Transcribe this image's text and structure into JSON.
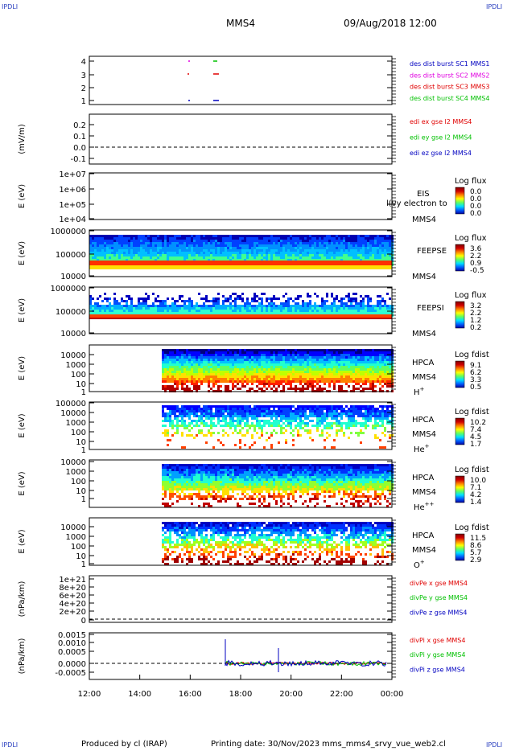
{
  "corners": {
    "tl": "IPDLI",
    "tr": "IPDLI",
    "bl": "IPDLI",
    "br": "IPDLI"
  },
  "header": {
    "spacecraft": "MMS4",
    "datetime": "09/Aug/2018 12:00"
  },
  "footer": {
    "produced": "Produced by cl (IRAP)",
    "printed": "Printing date: 30/Nov/2023",
    "file": "mms_mms4_srvy_vue_web2.cl"
  },
  "colors": {
    "red": "#e00000",
    "green": "#00c000",
    "blue": "#0000c0",
    "magenta": "#e000e0"
  },
  "chart_data": {
    "type": "heatmap",
    "x_ticks": [
      "12:00",
      "14:00",
      "16:00",
      "18:00",
      "20:00",
      "22:00",
      "00:00"
    ],
    "x_range": [
      "2018-08-09T12:00",
      "2018-08-10T00:00"
    ],
    "panels": [
      {
        "id": "burst",
        "yticks": [
          "4",
          "3",
          "2",
          "1"
        ],
        "ylabel": "",
        "legend": [
          {
            "text": "des dist burst SC1 MMS1",
            "color": "#0000c0"
          },
          {
            "text": "des dist burst SC2 MMS2",
            "color": "#e000e0"
          },
          {
            "text": "des dist burst SC3 MMS3",
            "color": "#e00000"
          },
          {
            "text": "des dist burst SC4 MMS4",
            "color": "#00c000"
          }
        ]
      },
      {
        "id": "edi",
        "yticks": [
          "0.2",
          "0.1",
          "0.0",
          "-0.1"
        ],
        "ylabel": "(mV/m)",
        "legend": [
          {
            "text": "edi ex gse l2 MMS4",
            "color": "#e00000"
          },
          {
            "text": "edi ey gse l2 MMS4",
            "color": "#00c000"
          },
          {
            "text": "edi ez gse l2 MMS4",
            "color": "#0000c0"
          }
        ]
      },
      {
        "id": "eis",
        "yticks": [
          "1e+07",
          "1e+06",
          "1e+05",
          "1e+04"
        ],
        "ylabel": "E (eV)",
        "labels": [
          "EIS",
          "MMS4"
        ],
        "overlay": "l(vy electron to",
        "cbar_title": "Log flux",
        "cbar_ticks": [
          "0.0",
          "0.0",
          "0.0",
          "0.0"
        ]
      },
      {
        "id": "feepse",
        "yticks": [
          "1000000",
          "100000",
          "10000"
        ],
        "ylabel": "E (eV)",
        "labels": [
          "FEEPSE",
          "MMS4"
        ],
        "cbar_title": "Log flux",
        "cbar_ticks": [
          "3.6",
          "2.2",
          "0.9",
          "-0.5"
        ]
      },
      {
        "id": "feepsi",
        "yticks": [
          "1000000",
          "100000",
          "10000"
        ],
        "ylabel": "E (eV)",
        "labels": [
          "FEEPSI",
          "MMS4"
        ],
        "cbar_title": "Log flux",
        "cbar_ticks": [
          "3.2",
          "2.2",
          "1.2",
          "0.2"
        ]
      },
      {
        "id": "hpca_h",
        "yticks": [
          "10000",
          "1000",
          "100",
          "10",
          "1"
        ],
        "ylabel": "E (eV)",
        "labels": [
          "HPCA",
          "MMS4"
        ],
        "species": "H",
        "sup": "+",
        "cbar_title": "Log fdist",
        "cbar_ticks": [
          "9.1",
          "6.2",
          "3.3",
          "0.5"
        ]
      },
      {
        "id": "hpca_he",
        "yticks": [
          "100000",
          "10000",
          "1000",
          "100",
          "10",
          "1"
        ],
        "ylabel": "E (eV)",
        "labels": [
          "HPCA",
          "MMS4"
        ],
        "species": "He",
        "sup": "+",
        "cbar_title": "Log fdist",
        "cbar_ticks": [
          "10.2",
          "7.4",
          "4.5",
          "1.7"
        ]
      },
      {
        "id": "hpca_hepp",
        "yticks": [
          "10000",
          "1000",
          "100",
          "10",
          "1"
        ],
        "ylabel": "E (eV)",
        "labels": [
          "HPCA",
          "MMS4"
        ],
        "species": "He",
        "sup": "++",
        "cbar_title": "Log fdist",
        "cbar_ticks": [
          "10.0",
          "7.1",
          "4.2",
          "1.4"
        ]
      },
      {
        "id": "hpca_o",
        "yticks": [
          "10000",
          "1000",
          "100",
          "10",
          "1"
        ],
        "ylabel": "E (eV)",
        "labels": [
          "HPCA",
          "MMS4"
        ],
        "species": "O",
        "sup": "+",
        "cbar_title": "Log fdist",
        "cbar_ticks": [
          "11.5",
          "8.6",
          "5.7",
          "2.9"
        ]
      },
      {
        "id": "divpe",
        "yticks": [
          "1e+21",
          "8e+20",
          "6e+20",
          "4e+20",
          "2e+20",
          "0"
        ],
        "ylabel": "(nPa/km)",
        "legend": [
          {
            "text": "divPe x gse MMS4",
            "color": "#e00000"
          },
          {
            "text": "divPe y gse MMS4",
            "color": "#00c000"
          },
          {
            "text": "divPe z gse MMS4",
            "color": "#0000c0"
          }
        ]
      },
      {
        "id": "divpi",
        "yticks": [
          "0.0015",
          "0.0010",
          "0.0005",
          "0.0000",
          "-0.0005"
        ],
        "ylabel": "(nPa/km)",
        "legend": [
          {
            "text": "divPi x gse MMS4",
            "color": "#e00000"
          },
          {
            "text": "divPi y gse MMS4",
            "color": "#00c000"
          },
          {
            "text": "divPi z gse MMS4",
            "color": "#0000c0"
          }
        ]
      }
    ]
  }
}
